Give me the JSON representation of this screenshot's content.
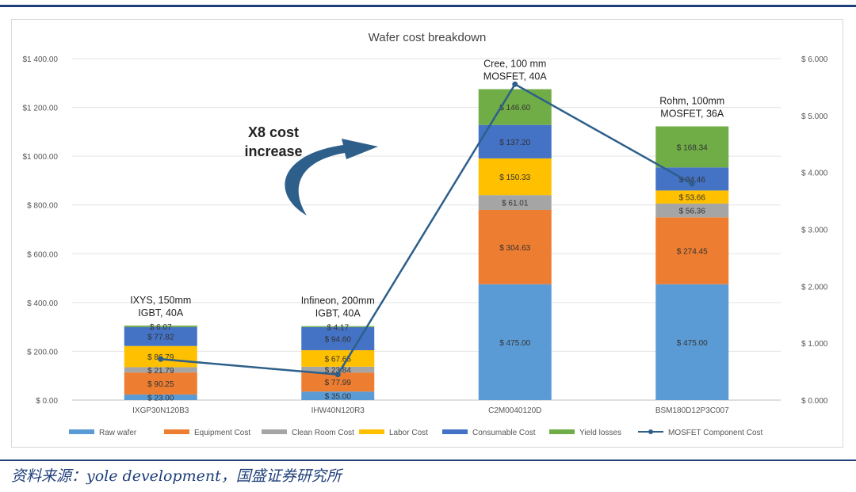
{
  "source_note": "资料来源：yole development，国盛证券研究所",
  "annotation": {
    "line1": "X8 cost",
    "line2": "increase"
  },
  "chart_data": {
    "type": "bar",
    "stacked": true,
    "title": "Wafer cost breakdown",
    "categories": [
      "IXGP30N120B3",
      "IHW40N120R3",
      "C2M0040120D",
      "BSM180D12P3C007"
    ],
    "category_labels": [
      [
        "IXYS, 150mm",
        "IGBT, 40A"
      ],
      [
        "Infineon, 200mm",
        "IGBT, 40A"
      ],
      [
        "Cree, 100 mm",
        "MOSFET, 40A"
      ],
      [
        "Rohm, 100mm",
        "MOSFET, 36A"
      ]
    ],
    "ylim": [
      0,
      1400
    ],
    "y_ticks": [
      0,
      200,
      400,
      600,
      800,
      1000,
      1200,
      1400
    ],
    "y_tick_labels": [
      "$ 0.00",
      "$ 200.00",
      "$ 400.00",
      "$ 600.00",
      "$ 800.00",
      "$1 000.00",
      "$1 200.00",
      "$1 400.00"
    ],
    "y2lim": [
      0,
      6
    ],
    "y2_ticks": [
      0,
      1,
      2,
      3,
      4,
      5,
      6
    ],
    "y2_tick_labels": [
      "$ 0.000",
      "$ 1.000",
      "$ 2.000",
      "$ 3.000",
      "$ 4.000",
      "$ 5.000",
      "$ 6.000"
    ],
    "series": [
      {
        "name": "Raw wafer",
        "color": "#5b9bd5",
        "values": [
          23.0,
          35.0,
          475.0,
          475.0
        ],
        "labels": [
          "$ 23.00",
          "$ 35.00",
          "$ 475.00",
          "$ 475.00"
        ]
      },
      {
        "name": "Equipment Cost",
        "color": "#ed7d31",
        "values": [
          90.25,
          77.99,
          304.63,
          274.45
        ],
        "labels": [
          "$ 90.25",
          "$ 77.99",
          "$ 304.63",
          "$ 274.45"
        ]
      },
      {
        "name": "Clean Room Cost",
        "color": "#a5a5a5",
        "values": [
          21.79,
          23.84,
          61.01,
          56.36
        ],
        "labels": [
          "$ 21.79",
          "$ 23.84",
          "$ 61.01",
          "$ 56.36"
        ]
      },
      {
        "name": "Labor Cost",
        "color": "#ffc000",
        "values": [
          86.79,
          67.65,
          150.33,
          53.66
        ],
        "labels": [
          "$ 86.79",
          "$ 67.65",
          "$ 150.33",
          "$ 53.66"
        ]
      },
      {
        "name": "Consumable Cost",
        "color": "#4472c4",
        "values": [
          77.82,
          94.6,
          137.2,
          94.46
        ],
        "labels": [
          "$ 77.82",
          "$ 94.60",
          "$ 137.20",
          "$ 94.46"
        ]
      },
      {
        "name": "Yield losses",
        "color": "#70ad47",
        "values": [
          6.07,
          4.17,
          146.6,
          168.34
        ],
        "labels": [
          "$ 6.07",
          "$ 4.17",
          "$ 146.60",
          "$ 168.34"
        ]
      }
    ],
    "line_series": {
      "name": "MOSFET Component Cost",
      "color": "#2e5f8a",
      "values": [
        0.72,
        0.45,
        5.55,
        3.8
      ]
    },
    "legend_position": "bottom",
    "grid": true
  }
}
